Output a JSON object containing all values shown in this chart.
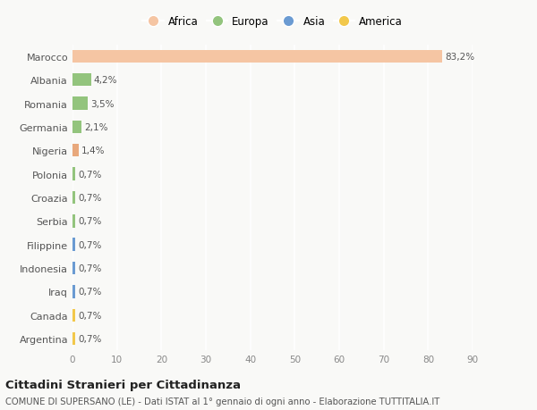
{
  "categories": [
    "Argentina",
    "Canada",
    "Iraq",
    "Indonesia",
    "Filippine",
    "Serbia",
    "Croazia",
    "Polonia",
    "Nigeria",
    "Germania",
    "Romania",
    "Albania",
    "Marocco"
  ],
  "values": [
    0.7,
    0.7,
    0.7,
    0.7,
    0.7,
    0.7,
    0.7,
    0.7,
    1.4,
    2.1,
    3.5,
    4.2,
    83.2
  ],
  "labels": [
    "0,7%",
    "0,7%",
    "0,7%",
    "0,7%",
    "0,7%",
    "0,7%",
    "0,7%",
    "0,7%",
    "1,4%",
    "2,1%",
    "3,5%",
    "4,2%",
    "83,2%"
  ],
  "colors": [
    "#F2C84B",
    "#F2C84B",
    "#6B9BD2",
    "#6B9BD2",
    "#6B9BD2",
    "#93C47D",
    "#93C47D",
    "#93C47D",
    "#E8A87C",
    "#93C47D",
    "#93C47D",
    "#93C47D",
    "#F5C5A3"
  ],
  "legend": [
    {
      "label": "Africa",
      "color": "#F5C5A3"
    },
    {
      "label": "Europa",
      "color": "#93C47D"
    },
    {
      "label": "Asia",
      "color": "#6B9BD2"
    },
    {
      "label": "America",
      "color": "#F2C84B"
    }
  ],
  "xlim": [
    0,
    90
  ],
  "xticks": [
    0,
    10,
    20,
    30,
    40,
    50,
    60,
    70,
    80,
    90
  ],
  "title": "Cittadini Stranieri per Cittadinanza",
  "subtitle": "COMUNE DI SUPERSANO (LE) - Dati ISTAT al 1° gennaio di ogni anno - Elaborazione TUTTITALIA.IT",
  "background_color": "#f9f9f7",
  "grid_color": "#ffffff",
  "bar_height": 0.55,
  "label_fontsize": 7.5,
  "ytick_fontsize": 8,
  "xtick_fontsize": 7.5
}
